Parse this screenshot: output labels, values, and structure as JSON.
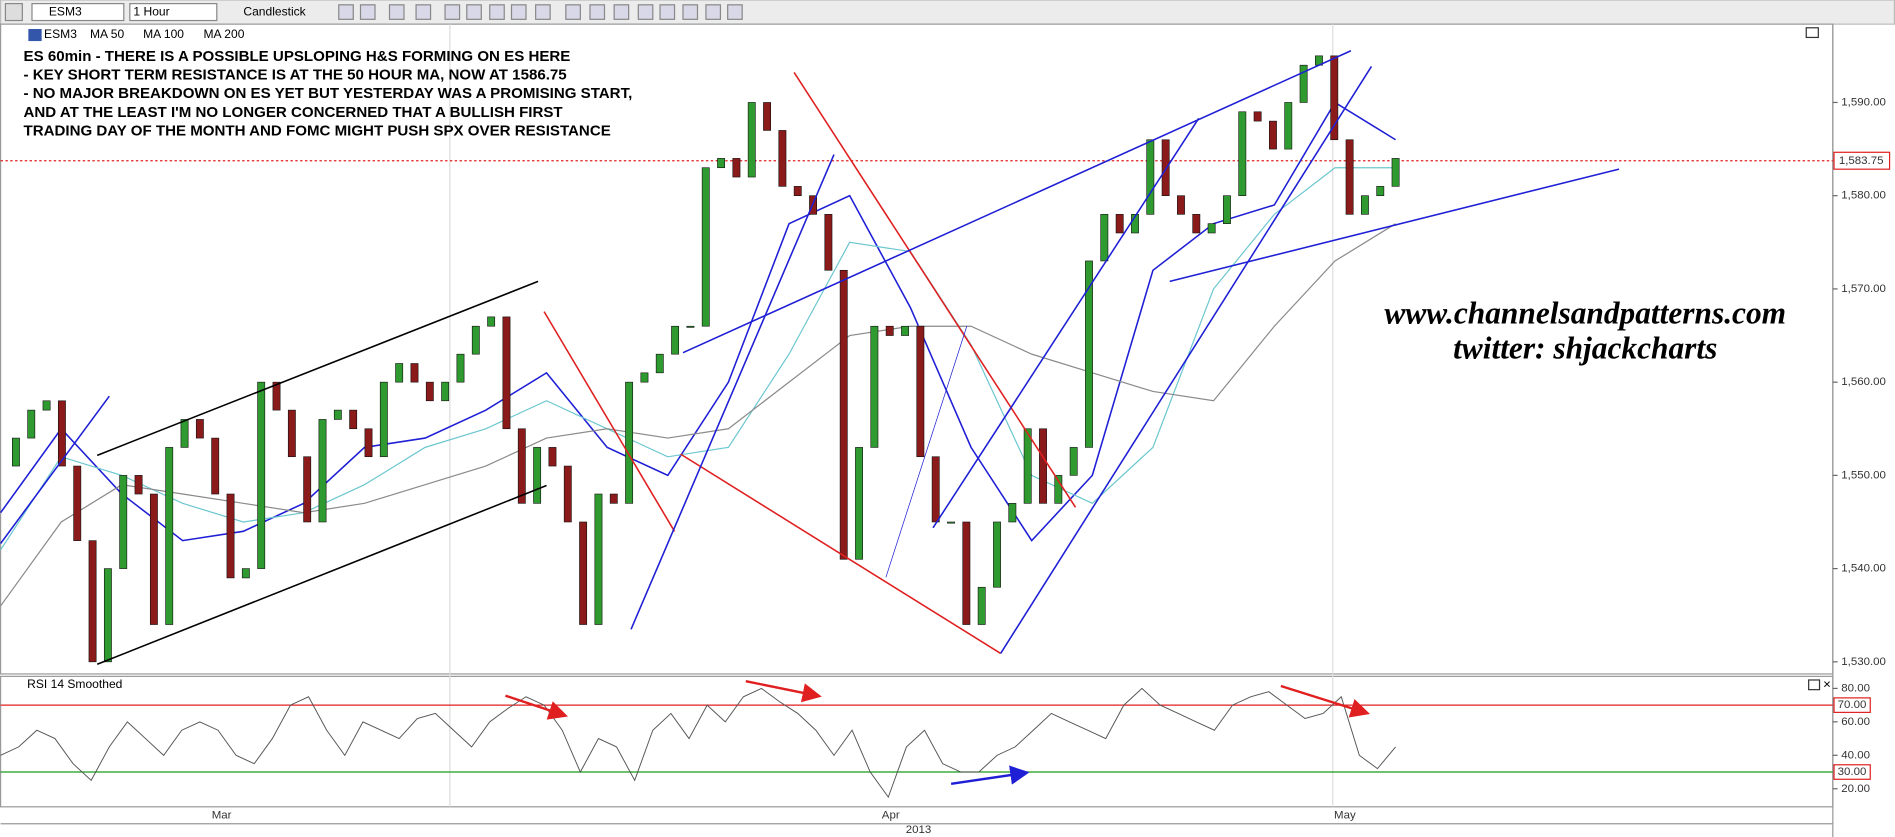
{
  "toolbar": {
    "symbol": "ESM3",
    "interval": "1 Hour",
    "chart_type": "Candlestick"
  },
  "legend": {
    "symbol": "ESM3"
  },
  "notes": [
    "ES 60min - THERE IS A POSSIBLE UPSLOPING H&S FORMING ON ES HERE",
    "- KEY SHORT TERM RESISTANCE IS AT THE 50 HOUR MA, NOW AT 1586.75",
    "- NO MAJOR BREAKDOWN ON ES YET BUT YESTERDAY WAS A PROMISING START,",
    "AND AT THE LEAST I'M NO LONGER CONCERNED THAT A BULLISH FIRST",
    "TRADING DAY OF THE MONTH AND FOMC MIGHT PUSH SPX OVER RESISTANCE"
  ],
  "watermark": [
    "www.channelsandpatterns.com",
    "twitter: shjackcharts"
  ],
  "price_axis": {
    "ylim": [
      1528.7,
      1598.4
    ],
    "ticks": [
      {
        "value": 1530,
        "label": "1,530.00"
      },
      {
        "value": 1540,
        "label": "1,540.00"
      },
      {
        "value": 1550,
        "label": "1,550.00"
      },
      {
        "value": 1560,
        "label": "1,560.00"
      },
      {
        "value": 1570,
        "label": "1,570.00"
      },
      {
        "value": 1580,
        "label": "1,580.00"
      },
      {
        "value": 1590,
        "label": "1,590.00"
      }
    ],
    "last": {
      "value": 1583.75,
      "label": "1,583.75"
    }
  },
  "price": {
    "values": [
      1551,
      1554,
      1557,
      1558,
      1551,
      1543,
      1530,
      1540,
      1550,
      1548,
      1534,
      1553,
      1556,
      1554,
      1548,
      1539,
      1540,
      1560,
      1557,
      1552,
      1545,
      1556,
      1557,
      1555,
      1552,
      1560,
      1562,
      1560,
      1558,
      1560,
      1563,
      1566,
      1567,
      1555,
      1547,
      1553,
      1551,
      1545,
      1534,
      1548,
      1547,
      1560,
      1561,
      1563,
      1566,
      1566,
      1583,
      1584,
      1582,
      1590,
      1587,
      1581,
      1580,
      1578,
      1572,
      1541,
      1553,
      1566,
      1565,
      1566,
      1552,
      1545,
      1545,
      1534,
      1538,
      1545,
      1547,
      1555,
      1547,
      1550,
      1553,
      1573,
      1578,
      1576,
      1578,
      1586,
      1580,
      1578,
      1576,
      1577,
      1580,
      1589,
      1588,
      1585,
      1590,
      1594,
      1595,
      1586,
      1578,
      1580,
      1581,
      1584
    ]
  },
  "moving_averages": [
    {
      "name": "MA 50",
      "color": "#1f1fd6",
      "values": [
        1546,
        1555,
        1548,
        1543,
        1544,
        1547,
        1553,
        1554,
        1557,
        1561,
        1553,
        1550,
        1560,
        1577,
        1580,
        1568,
        1553,
        1543,
        1550,
        1572,
        1577,
        1579,
        1590,
        1586
      ]
    },
    {
      "name": "MA 100",
      "color": "#6cc7cf",
      "values": [
        1542,
        1552,
        1550,
        1547,
        1545,
        1546,
        1549,
        1553,
        1555,
        1558,
        1555,
        1552,
        1553,
        1563,
        1575,
        1574,
        1564,
        1550,
        1547,
        1553,
        1570,
        1578,
        1583,
        1583
      ]
    },
    {
      "name": "MA 200",
      "color": "#8a8a8a",
      "values": [
        1536,
        1545,
        1549,
        1548,
        1547,
        1546,
        1547,
        1549,
        1551,
        1554,
        1555,
        1554,
        1555,
        1560,
        1565,
        1566,
        1566,
        1563,
        1561,
        1559,
        1558,
        1566,
        1573,
        1577
      ]
    }
  ],
  "rsi": {
    "title": "RSI 14 Smoothed",
    "ylim": [
      9.2,
      87.2
    ],
    "ticks": [
      {
        "value": 20,
        "label": "20.00"
      },
      {
        "value": 40,
        "label": "40.00"
      },
      {
        "value": 60,
        "label": "60.00"
      },
      {
        "value": 80,
        "label": "80.00"
      }
    ],
    "levels": [
      {
        "value": 70,
        "label": "70.00",
        "color": "#e02020"
      },
      {
        "value": 30,
        "label": "30.00",
        "color": "#1a9a1a"
      }
    ],
    "values": [
      40,
      45,
      55,
      50,
      35,
      25,
      45,
      60,
      50,
      40,
      55,
      60,
      55,
      40,
      35,
      50,
      70,
      75,
      55,
      40,
      60,
      55,
      50,
      62,
      65,
      55,
      45,
      60,
      68,
      75,
      70,
      55,
      30,
      50,
      45,
      25,
      55,
      65,
      50,
      70,
      60,
      75,
      80,
      72,
      65,
      55,
      40,
      55,
      30,
      15,
      45,
      55,
      35,
      30,
      30,
      40,
      45,
      55,
      65,
      60,
      55,
      50,
      70,
      80,
      70,
      65,
      60,
      55,
      70,
      75,
      78,
      70,
      62,
      65,
      75,
      40,
      32,
      45
    ]
  },
  "time_axis": {
    "labels": [
      "Mar",
      "Apr",
      "May"
    ],
    "year": "2013"
  }
}
